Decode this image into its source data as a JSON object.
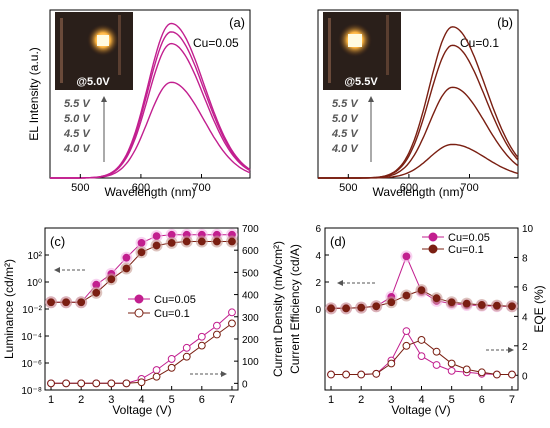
{
  "colors": {
    "pink": "#c21f8f",
    "pink_light": "#f3b6e6",
    "brown": "#7a1f12",
    "brown_light": "#c79b92",
    "arrow": "#555555"
  },
  "chart_data": [
    {
      "id": "a",
      "type": "line",
      "panel_label": "(a)",
      "annotation": "Cu=0.05",
      "inset_label": "@5.0V",
      "xlabel": "Wavelength (nm)",
      "ylabel": "EL Intensity (a.u.)",
      "xlim": [
        450,
        780
      ],
      "ylim": [
        0,
        1
      ],
      "xticks": [
        500,
        600,
        700
      ],
      "peak_nm": 650,
      "color": "#c21f8f",
      "voltage_labels": [
        "5.5 V",
        "5.0 V",
        "4.5 V",
        "4.0 V"
      ],
      "series": [
        {
          "name": "4.0 V",
          "peak": 0.57
        },
        {
          "name": "4.5 V",
          "peak": 0.8
        },
        {
          "name": "5.0 V",
          "peak": 0.87
        },
        {
          "name": "5.5 V",
          "peak": 0.92
        }
      ]
    },
    {
      "id": "b",
      "type": "line",
      "panel_label": "(b)",
      "annotation": "Cu=0.1",
      "inset_label": "@5.5V",
      "xlabel": "Wavelength (nm)",
      "ylabel": "",
      "xlim": [
        450,
        780
      ],
      "ylim": [
        0,
        1
      ],
      "xticks": [
        500,
        600,
        700
      ],
      "peak_nm": 672,
      "color": "#7a1f12",
      "voltage_labels": [
        "5.5 V",
        "5.0 V",
        "4.5 V",
        "4.0 V"
      ],
      "series": [
        {
          "name": "4.0 V",
          "peak": 0.2
        },
        {
          "name": "4.5 V",
          "peak": 0.54
        },
        {
          "name": "5.0 V",
          "peak": 0.79
        },
        {
          "name": "5.5 V",
          "peak": 0.9
        }
      ]
    },
    {
      "id": "c",
      "type": "line",
      "panel_label": "(c)",
      "xlabel": "Voltage (V)",
      "ylabel": "Luminance (cd/m²)",
      "ylabel_right": "Current Density (mA/cm²)",
      "x": [
        1,
        1.5,
        2,
        2.5,
        3,
        3.5,
        4,
        4.5,
        5,
        5.5,
        6,
        6.5,
        7
      ],
      "xticks": [
        "1",
        "2",
        "3",
        "4",
        "5",
        "6",
        "7"
      ],
      "xlim": [
        0.8,
        7.2
      ],
      "ylim_left_log10": [
        -8,
        4
      ],
      "left_ticks": [
        "10⁻⁸",
        "10⁻⁶",
        "10⁻⁴",
        "10⁻²",
        "10⁰",
        "10²"
      ],
      "ylim_right": [
        -30,
        700
      ],
      "right_ticks": [
        "0",
        "100",
        "200",
        "300",
        "400",
        "500",
        "600",
        "700"
      ],
      "legend": [
        "Cu=0.05",
        "Cu=0.1"
      ],
      "luminance_log10": {
        "cu005": [
          -1.5,
          -1.5,
          -1.5,
          -0.2,
          0.6,
          1.8,
          2.9,
          3.4,
          3.5,
          3.5,
          3.5,
          3.5,
          3.5
        ],
        "cu01": [
          -1.5,
          -1.5,
          -1.5,
          -0.8,
          0.2,
          1.0,
          2.2,
          2.7,
          2.9,
          3.0,
          3.0,
          3.0,
          3.0
        ]
      },
      "current_density": {
        "cu005": [
          0,
          0,
          0,
          0,
          0,
          0,
          20,
          60,
          110,
          160,
          210,
          260,
          320
        ],
        "cu01": [
          0,
          0,
          0,
          0,
          0,
          0,
          5,
          30,
          70,
          120,
          170,
          220,
          270
        ]
      }
    },
    {
      "id": "d",
      "type": "line",
      "panel_label": "(d)",
      "xlabel": "Voltage (V)",
      "ylabel": "Current Efficiency (cd/A)",
      "ylabel_right": "EQE (%)",
      "x": [
        1,
        1.5,
        2,
        2.5,
        3,
        3.5,
        4,
        4.5,
        5,
        5.5,
        6,
        6.5,
        7
      ],
      "xticks": [
        "1",
        "2",
        "3",
        "4",
        "5",
        "6",
        "7"
      ],
      "xlim": [
        0.8,
        7.2
      ],
      "ylim_left": [
        -6,
        6
      ],
      "left_ticks": [
        "0",
        "2",
        "4",
        "6"
      ],
      "ylim_right": [
        -1,
        10
      ],
      "right_ticks": [
        "0",
        "2",
        "4",
        "6",
        "8",
        "10"
      ],
      "legend": [
        "Cu=0.05",
        "Cu=0.1"
      ],
      "current_efficiency": {
        "cu005": [
          0.05,
          0.05,
          0.1,
          0.2,
          0.9,
          3.9,
          1.3,
          0.6,
          0.4,
          0.3,
          0.25,
          0.2,
          0.2
        ],
        "cu01": [
          0.05,
          0.05,
          0.1,
          0.2,
          0.5,
          1.0,
          1.4,
          0.8,
          0.5,
          0.4,
          0.3,
          0.25,
          0.2
        ]
      },
      "eqe": {
        "cu005": [
          0.05,
          0.05,
          0.05,
          0.1,
          1.0,
          3.0,
          1.3,
          0.7,
          0.3,
          0.2,
          0.1,
          0.05,
          0.05
        ],
        "cu01": [
          0.05,
          0.05,
          0.05,
          0.1,
          0.8,
          2.0,
          2.4,
          1.6,
          0.8,
          0.4,
          0.2,
          0.05,
          0.05
        ]
      }
    }
  ]
}
